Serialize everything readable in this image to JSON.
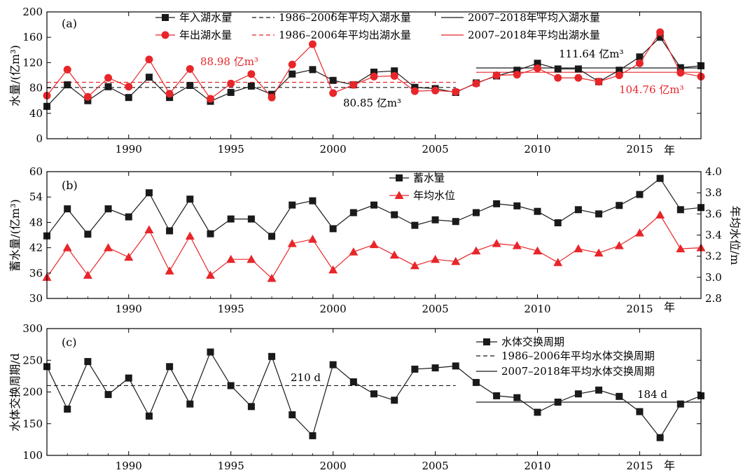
{
  "colors": {
    "black": "#1a1a1a",
    "red": "#e8262a"
  },
  "chart_data": [
    {
      "type": "line",
      "panel_label": "(a)",
      "ylabel": "水量/(亿m³)",
      "xlabel": "",
      "year_unit": "年",
      "xlim": [
        1986,
        2018
      ],
      "ylim": [
        0,
        200
      ],
      "xticks": [
        1990,
        1995,
        2000,
        2005,
        2010,
        2015
      ],
      "yticks": [
        0,
        40,
        80,
        120,
        160,
        200
      ],
      "x": [
        1986,
        1987,
        1988,
        1989,
        1990,
        1991,
        1992,
        1993,
        1994,
        1995,
        1996,
        1997,
        1998,
        1999,
        2000,
        2001,
        2002,
        2003,
        2004,
        2005,
        2006,
        2007,
        2008,
        2009,
        2010,
        2011,
        2012,
        2013,
        2014,
        2015,
        2016,
        2017,
        2018
      ],
      "series": [
        {
          "name": "年入湖水量",
          "color": "#1a1a1a",
          "marker": "square",
          "values": [
            51,
            85,
            60,
            82,
            65,
            97,
            65,
            84,
            59,
            73,
            83,
            70,
            102,
            109,
            92,
            85,
            105,
            107,
            81,
            79,
            73,
            88,
            99,
            108,
            119,
            110,
            110,
            90,
            108,
            129,
            160,
            112,
            115
          ]
        },
        {
          "name": "年出湖水量",
          "color": "#e8262a",
          "marker": "circle",
          "values": [
            68,
            109,
            66,
            96,
            82,
            125,
            71,
            110,
            63,
            87,
            102,
            65,
            117,
            149,
            72,
            85,
            98,
            99,
            75,
            76,
            74,
            87,
            100,
            101,
            111,
            96,
            96,
            90,
            100,
            119,
            168,
            104,
            98
          ]
        }
      ],
      "reference_lines": [
        {
          "name": "1986–2006年平均入湖水量",
          "color": "#1a1a1a",
          "dash": true,
          "value": 80.85,
          "x_range": [
            1986,
            2006
          ]
        },
        {
          "name": "2007–2018年平均入湖水量",
          "color": "#1a1a1a",
          "dash": false,
          "value": 111.64,
          "x_range": [
            2007,
            2018
          ]
        },
        {
          "name": "1986–2006年平均出湖水量",
          "color": "#e8262a",
          "dash": true,
          "value": 88.98,
          "x_range": [
            1986,
            2006
          ]
        },
        {
          "name": "2007–2018年平均出湖水量",
          "color": "#e8262a",
          "dash": false,
          "value": 104.76,
          "x_range": [
            2007,
            2018
          ]
        }
      ],
      "annotations": [
        {
          "text": "88.98 亿m³",
          "color": "#e8262a"
        },
        {
          "text": "80.85 亿m³",
          "color": "#1a1a1a"
        },
        {
          "text": "111.64 亿m³",
          "color": "#1a1a1a"
        },
        {
          "text": "104.76 亿m³",
          "color": "#e8262a"
        }
      ]
    },
    {
      "type": "line",
      "panel_label": "(b)",
      "ylabel": "蓄水量/(亿m³)",
      "ylabel_right": "年均水位/m",
      "year_unit": "年",
      "xlim": [
        1986,
        2018
      ],
      "ylim": [
        30,
        60
      ],
      "ylim_right": [
        2.8,
        4.0
      ],
      "xticks": [
        1990,
        1995,
        2000,
        2005,
        2010,
        2015
      ],
      "yticks": [
        30,
        36,
        42,
        48,
        54,
        60
      ],
      "yticks_right": [
        "2.8",
        "3.0",
        "3.2",
        "3.4",
        "3.6",
        "3.8",
        "4.0"
      ],
      "x": [
        1986,
        1987,
        1988,
        1989,
        1990,
        1991,
        1992,
        1993,
        1994,
        1995,
        1996,
        1997,
        1998,
        1999,
        2000,
        2001,
        2002,
        2003,
        2004,
        2005,
        2006,
        2007,
        2008,
        2009,
        2010,
        2011,
        2012,
        2013,
        2014,
        2015,
        2016,
        2017,
        2018
      ],
      "series": [
        {
          "name": "蓄水量",
          "axis": "left",
          "color": "#1a1a1a",
          "marker": "square",
          "values": [
            44.8,
            51.2,
            45.2,
            51.2,
            49.3,
            55.0,
            46.0,
            53.5,
            45.3,
            48.8,
            48.8,
            44.7,
            52.1,
            53.1,
            46.5,
            50.3,
            52.1,
            49.8,
            47.3,
            48.6,
            48.2,
            50.3,
            52.4,
            51.9,
            50.6,
            47.9,
            51.0,
            50.0,
            52.0,
            54.6,
            58.4,
            51.0,
            51.5
          ]
        },
        {
          "name": "年均水位",
          "axis": "right",
          "color": "#e8262a",
          "marker": "triangle",
          "values": [
            3.0,
            3.28,
            3.02,
            3.28,
            3.19,
            3.45,
            3.06,
            3.39,
            3.02,
            3.17,
            3.17,
            2.99,
            3.32,
            3.36,
            3.07,
            3.24,
            3.31,
            3.21,
            3.11,
            3.17,
            3.15,
            3.25,
            3.32,
            3.3,
            3.25,
            3.14,
            3.27,
            3.23,
            3.3,
            3.42,
            3.59,
            3.27,
            3.28
          ]
        }
      ]
    },
    {
      "type": "line",
      "panel_label": "(c)",
      "ylabel": "水体交换周期/d",
      "year_unit": "年",
      "xlim": [
        1986,
        2018
      ],
      "ylim": [
        100,
        300
      ],
      "xticks": [
        1990,
        1995,
        2000,
        2005,
        2010,
        2015
      ],
      "yticks": [
        100,
        150,
        200,
        250,
        300
      ],
      "x": [
        1986,
        1987,
        1988,
        1989,
        1990,
        1991,
        1992,
        1993,
        1994,
        1995,
        1996,
        1997,
        1998,
        1999,
        2000,
        2001,
        2002,
        2003,
        2004,
        2005,
        2006,
        2007,
        2008,
        2009,
        2010,
        2011,
        2012,
        2013,
        2014,
        2015,
        2016,
        2017,
        2018
      ],
      "series": [
        {
          "name": "水体交换周期",
          "color": "#1a1a1a",
          "marker": "square",
          "values": [
            240,
            173,
            248,
            196,
            222,
            162,
            240,
            181,
            263,
            210,
            177,
            256,
            164,
            131,
            243,
            216,
            197,
            187,
            236,
            238,
            241,
            215,
            194,
            191,
            168,
            184,
            197,
            203,
            193,
            169,
            128,
            181,
            194
          ]
        }
      ],
      "reference_lines": [
        {
          "name": "1986–2006年平均水体交换周期",
          "color": "#1a1a1a",
          "dash": true,
          "value": 210,
          "x_range": [
            1986,
            2006
          ]
        },
        {
          "name": "2007–2018年平均水体交换周期",
          "color": "#1a1a1a",
          "dash": false,
          "value": 184,
          "x_range": [
            2007,
            2018
          ]
        }
      ],
      "annotations": [
        {
          "text": "210 d",
          "color": "#1a1a1a"
        },
        {
          "text": "184 d",
          "color": "#1a1a1a"
        }
      ]
    }
  ]
}
